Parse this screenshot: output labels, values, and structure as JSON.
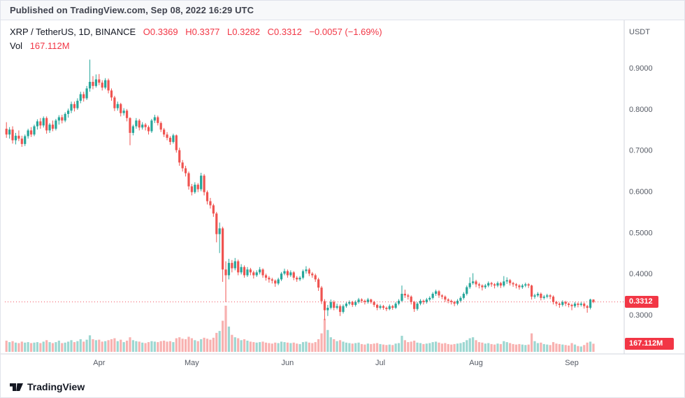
{
  "header": {
    "published_text": "Published on TradingView.com, Sep 08, 2022 16:29 UTC"
  },
  "legend": {
    "symbol": "XRP / TetherUS, 1D, BINANCE",
    "open": "O0.3369",
    "high": "H0.3377",
    "low": "L0.3282",
    "close": "C0.3312",
    "change": "−0.0057 (−1.69%)",
    "vol_label": "Vol",
    "vol_value": "167.112M"
  },
  "axis": {
    "currency": "USDT",
    "price_labels": [
      {
        "text": "0.9000",
        "price": 0.9
      },
      {
        "text": "0.8000",
        "price": 0.8
      },
      {
        "text": "0.7000",
        "price": 0.7
      },
      {
        "text": "0.6000",
        "price": 0.6
      },
      {
        "text": "0.5000",
        "price": 0.5
      },
      {
        "text": "0.4000",
        "price": 0.4
      },
      {
        "text": "0.3000",
        "price": 0.3
      }
    ],
    "time_labels": [
      {
        "text": "Apr",
        "index": 30
      },
      {
        "text": "May",
        "index": 60
      },
      {
        "text": "Jun",
        "index": 91
      },
      {
        "text": "Jul",
        "index": 121
      },
      {
        "text": "Aug",
        "index": 152
      },
      {
        "text": "Sep",
        "index": 183
      }
    ],
    "last_price_tag": {
      "text": "0.3312",
      "price": 0.3312
    },
    "last_volume_tag": {
      "text": "167.112M",
      "value": 167.112
    }
  },
  "colors": {
    "up": "#26a69a",
    "down": "#ef5350",
    "accent_red": "#f23645",
    "axis_line": "#d1d4dc",
    "text_dark": "#131722"
  },
  "footer": {
    "brand": "TradingView"
  },
  "chart_data": {
    "type": "candlestick+volume",
    "title": "XRP / TetherUS, 1D, BINANCE",
    "ylabel": "USDT",
    "ylim": [
      0.27,
      1.01
    ],
    "volume_unit": "M",
    "volume_max_scale": 950,
    "legend_ohlc": {
      "o": 0.3369,
      "h": 0.3377,
      "l": 0.3282,
      "c": 0.3312,
      "change": -0.0057,
      "change_pct": -1.69,
      "volume": "167.112M"
    },
    "candles_format": [
      "open",
      "high",
      "low",
      "close",
      "volume_millions"
    ],
    "candles": [
      [
        0.752,
        0.768,
        0.73,
        0.738,
        230
      ],
      [
        0.738,
        0.756,
        0.728,
        0.75,
        200
      ],
      [
        0.75,
        0.758,
        0.716,
        0.724,
        220
      ],
      [
        0.724,
        0.742,
        0.714,
        0.735,
        190
      ],
      [
        0.735,
        0.748,
        0.722,
        0.728,
        180
      ],
      [
        0.728,
        0.735,
        0.708,
        0.715,
        210
      ],
      [
        0.715,
        0.738,
        0.71,
        0.734,
        190
      ],
      [
        0.734,
        0.752,
        0.728,
        0.748,
        200
      ],
      [
        0.748,
        0.756,
        0.732,
        0.738,
        180
      ],
      [
        0.738,
        0.762,
        0.734,
        0.758,
        190
      ],
      [
        0.758,
        0.775,
        0.75,
        0.77,
        200
      ],
      [
        0.77,
        0.778,
        0.752,
        0.76,
        180
      ],
      [
        0.76,
        0.782,
        0.755,
        0.778,
        210
      ],
      [
        0.778,
        0.782,
        0.74,
        0.748,
        240
      ],
      [
        0.748,
        0.766,
        0.742,
        0.762,
        200
      ],
      [
        0.762,
        0.772,
        0.746,
        0.752,
        180
      ],
      [
        0.752,
        0.776,
        0.748,
        0.772,
        200
      ],
      [
        0.772,
        0.785,
        0.762,
        0.78,
        230
      ],
      [
        0.78,
        0.786,
        0.765,
        0.772,
        180
      ],
      [
        0.772,
        0.792,
        0.768,
        0.788,
        190
      ],
      [
        0.788,
        0.801,
        0.779,
        0.796,
        210
      ],
      [
        0.796,
        0.818,
        0.79,
        0.812,
        240
      ],
      [
        0.812,
        0.818,
        0.794,
        0.802,
        200
      ],
      [
        0.802,
        0.826,
        0.798,
        0.82,
        220
      ],
      [
        0.82,
        0.842,
        0.814,
        0.836,
        260
      ],
      [
        0.836,
        0.842,
        0.818,
        0.826,
        210
      ],
      [
        0.826,
        0.856,
        0.822,
        0.85,
        250
      ],
      [
        0.85,
        0.92,
        0.842,
        0.866,
        340
      ],
      [
        0.866,
        0.88,
        0.848,
        0.856,
        260
      ],
      [
        0.856,
        0.884,
        0.852,
        0.872,
        240
      ],
      [
        0.872,
        0.885,
        0.858,
        0.864,
        250
      ],
      [
        0.864,
        0.87,
        0.845,
        0.852,
        210
      ],
      [
        0.852,
        0.875,
        0.848,
        0.87,
        220
      ],
      [
        0.87,
        0.874,
        0.838,
        0.845,
        240
      ],
      [
        0.845,
        0.85,
        0.82,
        0.828,
        260
      ],
      [
        0.828,
        0.832,
        0.795,
        0.802,
        280
      ],
      [
        0.802,
        0.818,
        0.796,
        0.812,
        220
      ],
      [
        0.812,
        0.815,
        0.782,
        0.79,
        250
      ],
      [
        0.79,
        0.802,
        0.784,
        0.796,
        200
      ],
      [
        0.796,
        0.8,
        0.77,
        0.778,
        230
      ],
      [
        0.778,
        0.78,
        0.712,
        0.742,
        300
      ],
      [
        0.742,
        0.762,
        0.736,
        0.758,
        240
      ],
      [
        0.758,
        0.778,
        0.752,
        0.772,
        220
      ],
      [
        0.772,
        0.776,
        0.748,
        0.755,
        210
      ],
      [
        0.755,
        0.768,
        0.75,
        0.762,
        190
      ],
      [
        0.762,
        0.766,
        0.748,
        0.756,
        180
      ],
      [
        0.756,
        0.76,
        0.738,
        0.746,
        200
      ],
      [
        0.746,
        0.776,
        0.742,
        0.772,
        220
      ],
      [
        0.772,
        0.786,
        0.766,
        0.78,
        210
      ],
      [
        0.78,
        0.784,
        0.76,
        0.766,
        200
      ],
      [
        0.766,
        0.77,
        0.744,
        0.75,
        220
      ],
      [
        0.75,
        0.754,
        0.732,
        0.738,
        230
      ],
      [
        0.738,
        0.744,
        0.724,
        0.73,
        210
      ],
      [
        0.73,
        0.734,
        0.713,
        0.72,
        220
      ],
      [
        0.72,
        0.74,
        0.716,
        0.736,
        200
      ],
      [
        0.736,
        0.738,
        0.694,
        0.7,
        280
      ],
      [
        0.7,
        0.706,
        0.662,
        0.67,
        300
      ],
      [
        0.67,
        0.676,
        0.648,
        0.656,
        270
      ],
      [
        0.656,
        0.662,
        0.636,
        0.644,
        260
      ],
      [
        0.644,
        0.648,
        0.604,
        0.612,
        310
      ],
      [
        0.612,
        0.618,
        0.59,
        0.598,
        280
      ],
      [
        0.598,
        0.622,
        0.594,
        0.616,
        240
      ],
      [
        0.616,
        0.62,
        0.598,
        0.605,
        220
      ],
      [
        0.605,
        0.645,
        0.6,
        0.638,
        260
      ],
      [
        0.638,
        0.642,
        0.59,
        0.598,
        290
      ],
      [
        0.598,
        0.602,
        0.568,
        0.576,
        270
      ],
      [
        0.576,
        0.584,
        0.558,
        0.566,
        250
      ],
      [
        0.566,
        0.57,
        0.538,
        0.546,
        290
      ],
      [
        0.546,
        0.55,
        0.476,
        0.496,
        390
      ],
      [
        0.496,
        0.524,
        0.45,
        0.51,
        430
      ],
      [
        0.51,
        0.514,
        0.38,
        0.41,
        640
      ],
      [
        0.41,
        0.43,
        0.331,
        0.396,
        950
      ],
      [
        0.396,
        0.436,
        0.386,
        0.426,
        520
      ],
      [
        0.426,
        0.433,
        0.403,
        0.413,
        350
      ],
      [
        0.413,
        0.438,
        0.408,
        0.43,
        300
      ],
      [
        0.43,
        0.434,
        0.396,
        0.403,
        280
      ],
      [
        0.403,
        0.423,
        0.398,
        0.416,
        240
      ],
      [
        0.416,
        0.42,
        0.39,
        0.396,
        260
      ],
      [
        0.396,
        0.416,
        0.392,
        0.41,
        230
      ],
      [
        0.41,
        0.414,
        0.396,
        0.403,
        210
      ],
      [
        0.403,
        0.407,
        0.388,
        0.396,
        200
      ],
      [
        0.396,
        0.408,
        0.392,
        0.403,
        190
      ],
      [
        0.403,
        0.416,
        0.398,
        0.41,
        200
      ],
      [
        0.41,
        0.413,
        0.39,
        0.396,
        210
      ],
      [
        0.396,
        0.4,
        0.383,
        0.39,
        190
      ],
      [
        0.39,
        0.394,
        0.378,
        0.386,
        180
      ],
      [
        0.386,
        0.39,
        0.376,
        0.383,
        170
      ],
      [
        0.383,
        0.386,
        0.368,
        0.376,
        190
      ],
      [
        0.376,
        0.39,
        0.372,
        0.386,
        180
      ],
      [
        0.386,
        0.404,
        0.382,
        0.4,
        210
      ],
      [
        0.4,
        0.412,
        0.396,
        0.406,
        200
      ],
      [
        0.406,
        0.41,
        0.39,
        0.396,
        190
      ],
      [
        0.396,
        0.408,
        0.392,
        0.403,
        180
      ],
      [
        0.403,
        0.406,
        0.384,
        0.39,
        190
      ],
      [
        0.39,
        0.394,
        0.38,
        0.386,
        170
      ],
      [
        0.386,
        0.394,
        0.382,
        0.39,
        160
      ],
      [
        0.39,
        0.41,
        0.386,
        0.406,
        200
      ],
      [
        0.406,
        0.418,
        0.4,
        0.41,
        210
      ],
      [
        0.41,
        0.414,
        0.394,
        0.4,
        190
      ],
      [
        0.4,
        0.404,
        0.39,
        0.396,
        180
      ],
      [
        0.396,
        0.4,
        0.38,
        0.386,
        200
      ],
      [
        0.386,
        0.39,
        0.358,
        0.366,
        260
      ],
      [
        0.366,
        0.37,
        0.326,
        0.333,
        380
      ],
      [
        0.333,
        0.338,
        0.287,
        0.311,
        680
      ],
      [
        0.311,
        0.324,
        0.297,
        0.317,
        450
      ],
      [
        0.317,
        0.337,
        0.313,
        0.331,
        300
      ],
      [
        0.331,
        0.335,
        0.311,
        0.317,
        260
      ],
      [
        0.317,
        0.327,
        0.313,
        0.321,
        220
      ],
      [
        0.321,
        0.325,
        0.297,
        0.307,
        240
      ],
      [
        0.307,
        0.325,
        0.303,
        0.321,
        210
      ],
      [
        0.321,
        0.331,
        0.317,
        0.327,
        190
      ],
      [
        0.327,
        0.335,
        0.323,
        0.331,
        180
      ],
      [
        0.331,
        0.334,
        0.319,
        0.324,
        170
      ],
      [
        0.324,
        0.335,
        0.32,
        0.331,
        180
      ],
      [
        0.331,
        0.341,
        0.327,
        0.337,
        190
      ],
      [
        0.337,
        0.34,
        0.329,
        0.334,
        160
      ],
      [
        0.334,
        0.337,
        0.325,
        0.331,
        150
      ],
      [
        0.331,
        0.341,
        0.327,
        0.337,
        170
      ],
      [
        0.337,
        0.339,
        0.327,
        0.331,
        160
      ],
      [
        0.331,
        0.334,
        0.319,
        0.324,
        170
      ],
      [
        0.324,
        0.327,
        0.311,
        0.317,
        180
      ],
      [
        0.317,
        0.325,
        0.313,
        0.321,
        160
      ],
      [
        0.321,
        0.324,
        0.312,
        0.317,
        150
      ],
      [
        0.317,
        0.32,
        0.309,
        0.314,
        140
      ],
      [
        0.314,
        0.325,
        0.311,
        0.321,
        150
      ],
      [
        0.321,
        0.324,
        0.312,
        0.317,
        140
      ],
      [
        0.317,
        0.331,
        0.314,
        0.327,
        170
      ],
      [
        0.327,
        0.338,
        0.323,
        0.334,
        180
      ],
      [
        0.334,
        0.371,
        0.331,
        0.351,
        330
      ],
      [
        0.351,
        0.361,
        0.341,
        0.347,
        240
      ],
      [
        0.347,
        0.351,
        0.337,
        0.344,
        200
      ],
      [
        0.344,
        0.347,
        0.325,
        0.331,
        210
      ],
      [
        0.331,
        0.334,
        0.307,
        0.314,
        230
      ],
      [
        0.314,
        0.331,
        0.31,
        0.327,
        190
      ],
      [
        0.327,
        0.338,
        0.323,
        0.334,
        180
      ],
      [
        0.334,
        0.337,
        0.325,
        0.331,
        160
      ],
      [
        0.331,
        0.341,
        0.327,
        0.337,
        170
      ],
      [
        0.337,
        0.345,
        0.333,
        0.341,
        180
      ],
      [
        0.341,
        0.355,
        0.337,
        0.351,
        200
      ],
      [
        0.351,
        0.361,
        0.346,
        0.357,
        210
      ],
      [
        0.357,
        0.36,
        0.341,
        0.347,
        190
      ],
      [
        0.347,
        0.35,
        0.338,
        0.344,
        170
      ],
      [
        0.344,
        0.347,
        0.331,
        0.337,
        180
      ],
      [
        0.337,
        0.34,
        0.328,
        0.334,
        160
      ],
      [
        0.334,
        0.337,
        0.325,
        0.331,
        150
      ],
      [
        0.331,
        0.334,
        0.321,
        0.327,
        160
      ],
      [
        0.327,
        0.338,
        0.323,
        0.334,
        170
      ],
      [
        0.334,
        0.345,
        0.33,
        0.341,
        180
      ],
      [
        0.341,
        0.355,
        0.337,
        0.351,
        200
      ],
      [
        0.351,
        0.371,
        0.347,
        0.367,
        240
      ],
      [
        0.367,
        0.391,
        0.363,
        0.377,
        280
      ],
      [
        0.377,
        0.401,
        0.373,
        0.381,
        300
      ],
      [
        0.381,
        0.385,
        0.367,
        0.374,
        240
      ],
      [
        0.374,
        0.378,
        0.364,
        0.371,
        200
      ],
      [
        0.371,
        0.374,
        0.359,
        0.367,
        190
      ],
      [
        0.367,
        0.375,
        0.363,
        0.371,
        170
      ],
      [
        0.371,
        0.381,
        0.367,
        0.377,
        180
      ],
      [
        0.377,
        0.38,
        0.368,
        0.374,
        160
      ],
      [
        0.374,
        0.377,
        0.364,
        0.371,
        150
      ],
      [
        0.371,
        0.381,
        0.367,
        0.377,
        170
      ],
      [
        0.377,
        0.38,
        0.365,
        0.371,
        160
      ],
      [
        0.371,
        0.394,
        0.367,
        0.381,
        220
      ],
      [
        0.381,
        0.391,
        0.375,
        0.384,
        200
      ],
      [
        0.384,
        0.387,
        0.371,
        0.377,
        180
      ],
      [
        0.377,
        0.38,
        0.368,
        0.374,
        160
      ],
      [
        0.374,
        0.377,
        0.364,
        0.371,
        150
      ],
      [
        0.371,
        0.374,
        0.361,
        0.367,
        160
      ],
      [
        0.367,
        0.375,
        0.363,
        0.371,
        150
      ],
      [
        0.371,
        0.378,
        0.367,
        0.374,
        140
      ],
      [
        0.374,
        0.377,
        0.365,
        0.371,
        150
      ],
      [
        0.371,
        0.373,
        0.337,
        0.344,
        380
      ],
      [
        0.344,
        0.351,
        0.339,
        0.347,
        220
      ],
      [
        0.347,
        0.355,
        0.343,
        0.351,
        180
      ],
      [
        0.351,
        0.354,
        0.335,
        0.341,
        190
      ],
      [
        0.341,
        0.348,
        0.337,
        0.344,
        160
      ],
      [
        0.344,
        0.351,
        0.34,
        0.347,
        150
      ],
      [
        0.347,
        0.35,
        0.338,
        0.344,
        140
      ],
      [
        0.344,
        0.347,
        0.325,
        0.331,
        200
      ],
      [
        0.331,
        0.334,
        0.321,
        0.327,
        170
      ],
      [
        0.327,
        0.33,
        0.317,
        0.324,
        160
      ],
      [
        0.324,
        0.335,
        0.32,
        0.331,
        150
      ],
      [
        0.331,
        0.334,
        0.321,
        0.327,
        140
      ],
      [
        0.327,
        0.33,
        0.318,
        0.324,
        130
      ],
      [
        0.324,
        0.327,
        0.311,
        0.321,
        180
      ],
      [
        0.321,
        0.331,
        0.317,
        0.327,
        150
      ],
      [
        0.327,
        0.33,
        0.318,
        0.324,
        120
      ],
      [
        0.324,
        0.331,
        0.32,
        0.327,
        110
      ],
      [
        0.327,
        0.33,
        0.315,
        0.321,
        140
      ],
      [
        0.321,
        0.324,
        0.305,
        0.317,
        190
      ],
      [
        0.317,
        0.339,
        0.313,
        0.3369,
        210
      ],
      [
        0.3369,
        0.3377,
        0.3282,
        0.3312,
        167.112
      ]
    ]
  }
}
